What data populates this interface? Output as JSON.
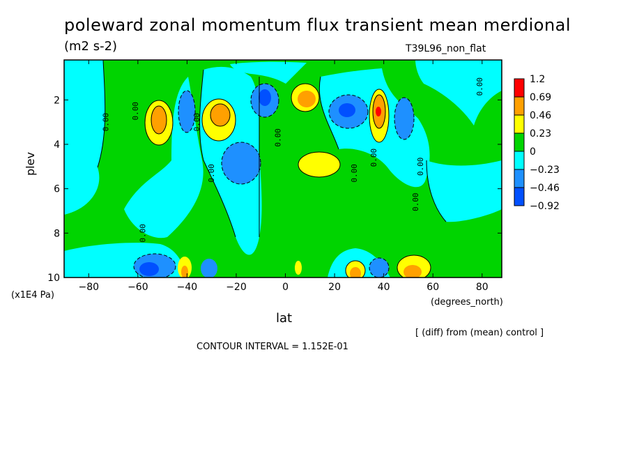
{
  "header": {
    "title": "poleward zonal momentum flux transient mean merdional",
    "units": "(m2 s-2)",
    "run_name": "T39L96_non_flat"
  },
  "footer": {
    "diff_note": "[ (diff) from (mean) control ]",
    "contour_interval": "CONTOUR INTERVAL = 1.152E-01"
  },
  "chart_data": {
    "type": "contour",
    "xlabel": "lat",
    "x_units": "(degrees_north)",
    "ylabel": "plev",
    "y_units": "(x1E4 Pa)",
    "xlim": [
      -90,
      88
    ],
    "ylim": [
      10,
      0.2
    ],
    "x_ticks": [
      -80,
      -60,
      -40,
      -20,
      0,
      20,
      40,
      60,
      80
    ],
    "x_tick_labels": [
      "-80",
      "-60",
      "-40",
      "-20",
      "0",
      "20",
      "40",
      "60",
      "80"
    ],
    "y_ticks": [
      2,
      4,
      6,
      8,
      10
    ],
    "y_tick_labels": [
      "2",
      "4",
      "6",
      "8",
      "10"
    ],
    "contour_interval": 0.1152,
    "contour_label": "0.00",
    "legend": {
      "placement": "right",
      "levels": [
        "1.2",
        "0.69",
        "0.46",
        "0.23",
        "0",
        "-0.23",
        "-0.46",
        "-0.92"
      ],
      "colors": [
        "#ff0000",
        "#ffa000",
        "#ffff00",
        "#00d400",
        "#00ffff",
        "#1e90ff",
        "#0050ff"
      ]
    },
    "features": [
      {
        "lat": -52,
        "plev": 2.8,
        "value": 0.6
      },
      {
        "lat": -40,
        "plev": 2.6,
        "value": -0.4
      },
      {
        "lat": -27,
        "plev": 2.6,
        "value": 0.6
      },
      {
        "lat": -16,
        "plev": 5.0,
        "value": -0.4
      },
      {
        "lat": -5,
        "plev": 1.6,
        "value": -0.4
      },
      {
        "lat": 9,
        "plev": 1.8,
        "value": 0.6
      },
      {
        "lat": 12,
        "plev": 5.0,
        "value": 0.35
      },
      {
        "lat": 25,
        "plev": 2.5,
        "value": -0.45
      },
      {
        "lat": 38,
        "plev": 2.6,
        "value": 0.8
      },
      {
        "lat": 51,
        "plev": 2.8,
        "value": -0.4
      },
      {
        "lat": -52,
        "plev": 9.5,
        "value": -0.5
      },
      {
        "lat": -45,
        "plev": 9.3,
        "value": 0.5
      },
      {
        "lat": -30,
        "plev": 9.4,
        "value": -0.4
      },
      {
        "lat": 28,
        "plev": 9.5,
        "value": 0.6
      },
      {
        "lat": 39,
        "plev": 9.4,
        "value": -0.45
      },
      {
        "lat": 51,
        "plev": 9.4,
        "value": 0.5
      }
    ]
  }
}
